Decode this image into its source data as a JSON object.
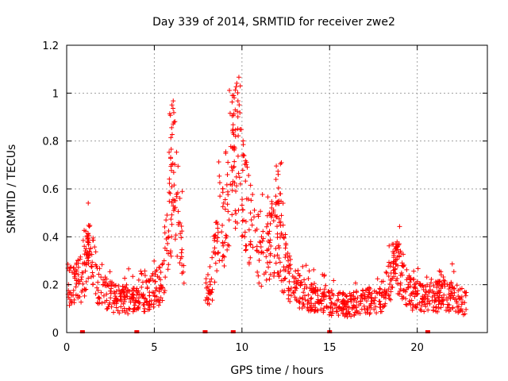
{
  "chart_data": {
    "type": "scatter",
    "title": "Day 339 of 2014, SRMTID for receiver zwe2",
    "xlabel": "GPS time / hours",
    "ylabel": "SRMTID / TECUs",
    "xlim": [
      0,
      24
    ],
    "ylim": [
      0,
      1.2
    ],
    "xticks": [
      0,
      5,
      10,
      15,
      20
    ],
    "xtick_labels": [
      "0",
      "5",
      "10",
      "15",
      "20"
    ],
    "yticks": [
      0,
      0.2,
      0.4,
      0.6,
      0.8,
      1.0,
      1.2
    ],
    "ytick_labels": [
      "0",
      "0.2",
      "0.4",
      "0.6",
      "0.8",
      "1",
      "1.2"
    ],
    "grid": true,
    "marker": "plus",
    "color": "#ff0000",
    "envelope": {
      "description": "approximate typical SRMTID level over the day (data units); individual plus markers scatter around this envelope",
      "x": [
        0.0,
        0.5,
        1.0,
        1.3,
        1.7,
        2.0,
        3.0,
        4.0,
        4.8,
        5.2,
        5.5,
        5.8,
        6.1,
        6.4,
        6.6,
        8.0,
        8.3,
        8.6,
        8.9,
        9.2,
        9.5,
        9.8,
        10.1,
        10.4,
        10.8,
        11.2,
        11.6,
        12.0,
        12.3,
        12.7,
        13.2,
        14.0,
        15.0,
        16.0,
        17.0,
        18.0,
        18.5,
        18.9,
        19.5,
        20.0,
        20.5,
        21.0,
        21.5,
        22.0,
        22.7
      ],
      "y": [
        0.18,
        0.2,
        0.22,
        0.32,
        0.22,
        0.16,
        0.13,
        0.13,
        0.16,
        0.18,
        0.2,
        0.45,
        0.6,
        0.45,
        0.3,
        0.15,
        0.22,
        0.4,
        0.45,
        0.5,
        0.7,
        0.75,
        0.55,
        0.45,
        0.35,
        0.3,
        0.38,
        0.4,
        0.28,
        0.22,
        0.17,
        0.14,
        0.12,
        0.11,
        0.12,
        0.14,
        0.22,
        0.25,
        0.16,
        0.15,
        0.14,
        0.14,
        0.15,
        0.14,
        0.12
      ]
    },
    "peaks": [
      {
        "x": 1.1,
        "y": 0.45
      },
      {
        "x": 6.0,
        "y": 0.96
      },
      {
        "x": 9.6,
        "y": 1.11
      },
      {
        "x": 12.1,
        "y": 0.72
      },
      {
        "x": 18.8,
        "y": 0.39
      }
    ],
    "gaps": [
      [
        6.7,
        7.9
      ]
    ],
    "zero_markers": [
      0.9,
      4.0,
      7.9,
      9.5,
      15.0,
      20.6
    ],
    "point_count": 1400
  }
}
